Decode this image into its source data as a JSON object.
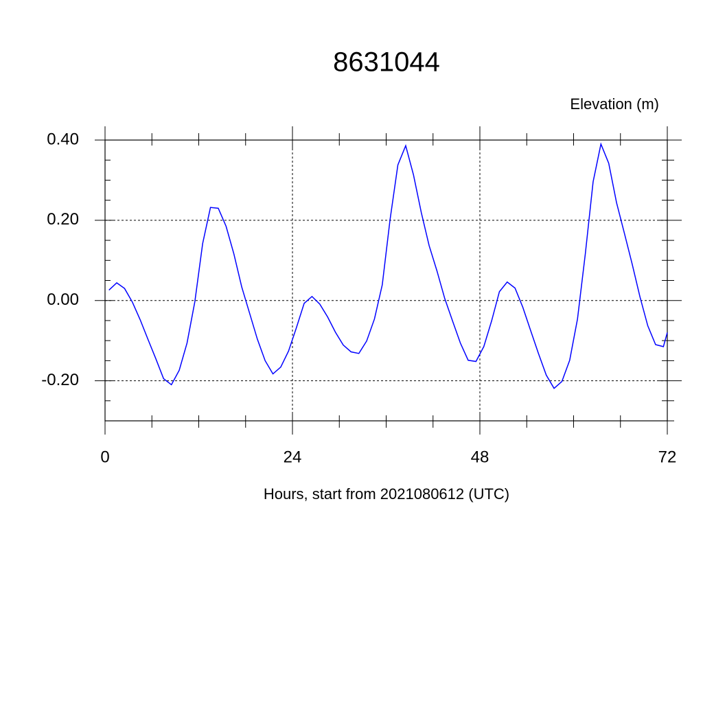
{
  "chart_data": {
    "type": "line",
    "title": "8631044",
    "subtitle": "Elevation (m)",
    "x_label": "Hours, start from 2021080612 (UTC)",
    "x": [
      0.5,
      1.5,
      2.5,
      3.5,
      4.5,
      5.5,
      6.5,
      7.5,
      8.5,
      9.5,
      10.5,
      11.5,
      12.5,
      13.5,
      14.5,
      15.5,
      16.5,
      17.5,
      18.5,
      19.5,
      20.5,
      21.5,
      22.5,
      23.5,
      24.5,
      25.5,
      26.5,
      27.5,
      28.5,
      29.5,
      30.5,
      31.5,
      32.5,
      33.5,
      34.5,
      35.5,
      36.5,
      37.5,
      38.5,
      39.5,
      40.5,
      41.5,
      42.5,
      43.5,
      44.5,
      45.5,
      46.5,
      47.5,
      48.5,
      49.5,
      50.5,
      51.5,
      52.5,
      53.5,
      54.5,
      55.5,
      56.5,
      57.5,
      58.5,
      59.5,
      60.5,
      61.5,
      62.5,
      63.5,
      64.5,
      65.5,
      66.5,
      67.5,
      68.5,
      69.5,
      70.5,
      71.5,
      72
    ],
    "series": [
      {
        "color": "#0000ff",
        "values": [
          0.026,
          0.044,
          0.03,
          -0.004,
          -0.048,
          -0.097,
          -0.145,
          -0.195,
          -0.21,
          -0.174,
          -0.106,
          -0.003,
          0.142,
          0.232,
          0.23,
          0.185,
          0.116,
          0.034,
          -0.031,
          -0.096,
          -0.15,
          -0.183,
          -0.166,
          -0.126,
          -0.068,
          -0.007,
          0.01,
          -0.009,
          -0.041,
          -0.079,
          -0.111,
          -0.128,
          -0.132,
          -0.101,
          -0.046,
          0.039,
          0.202,
          0.338,
          0.386,
          0.313,
          0.219,
          0.137,
          0.074,
          0.005,
          -0.051,
          -0.106,
          -0.149,
          -0.152,
          -0.115,
          -0.051,
          0.022,
          0.046,
          0.031,
          -0.017,
          -0.075,
          -0.132,
          -0.186,
          -0.219,
          -0.202,
          -0.149,
          -0.046,
          0.116,
          0.296,
          0.39,
          0.342,
          0.244,
          0.168,
          0.091,
          0.009,
          -0.063,
          -0.11,
          -0.115,
          -0.08
        ]
      }
    ],
    "xlim": [
      0,
      72
    ],
    "xticks": [
      0,
      24,
      48,
      72
    ],
    "xminorticks": [
      6,
      12,
      18,
      30,
      36,
      42,
      54,
      60,
      66
    ],
    "ylim": [
      -0.3,
      0.4
    ],
    "yticks": [
      {
        "value": 0.4,
        "label": "0.40"
      },
      {
        "value": 0.2,
        "label": "0.20"
      },
      {
        "value": 0,
        "label": "0.00"
      },
      {
        "value": -0.2,
        "label": "-0.20"
      }
    ],
    "yminorticks": [
      -0.3,
      -0.25,
      -0.15,
      -0.1,
      -0.05,
      0.05,
      0.1,
      0.15,
      0.25,
      0.3,
      0.35
    ],
    "grid": true
  }
}
